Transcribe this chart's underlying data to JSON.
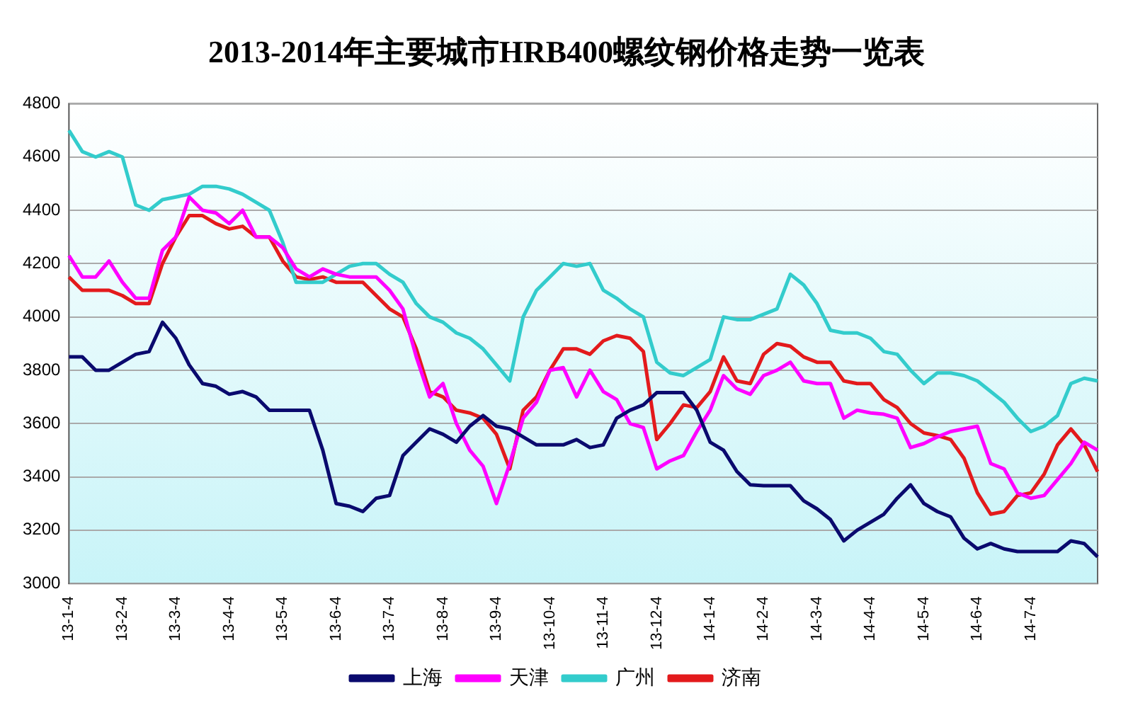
{
  "chart_data": {
    "type": "line",
    "title": "2013-2014年主要城市HRB400螺纹钢价格走势一览表",
    "categories": [
      "13-1-4",
      null,
      null,
      null,
      "13-2-4",
      null,
      null,
      null,
      "13-3-4",
      null,
      null,
      null,
      "13-4-4",
      null,
      null,
      null,
      "13-5-4",
      null,
      null,
      null,
      "13-6-4",
      null,
      null,
      null,
      "13-7-4",
      null,
      null,
      null,
      "13-8-4",
      null,
      null,
      null,
      "13-9-4",
      null,
      null,
      null,
      "13-10-4",
      null,
      null,
      null,
      "13-11-4",
      null,
      null,
      null,
      "13-12-4",
      null,
      null,
      null,
      "14-1-4",
      null,
      null,
      null,
      "14-2-4",
      null,
      null,
      null,
      "14-3-4",
      null,
      null,
      null,
      "14-4-4",
      null,
      null,
      null,
      "14-5-4",
      null,
      null,
      null,
      "14-6-4",
      null,
      null,
      null,
      "14-7-4",
      null,
      null,
      null,
      null,
      null
    ],
    "series": [
      {
        "name": "上海",
        "color": "#0a0a6e",
        "values": [
          3850,
          3850,
          3800,
          3800,
          3830,
          3860,
          3870,
          3980,
          3920,
          3820,
          3750,
          3740,
          3710,
          3720,
          3700,
          3650,
          3650,
          3650,
          3650,
          3500,
          3300,
          3290,
          3270,
          3320,
          3330,
          3480,
          3530,
          3580,
          3560,
          3530,
          3590,
          3630,
          3590,
          3580,
          3550,
          3520,
          3520,
          3520,
          3540,
          3510,
          3520,
          3620,
          3650,
          3670,
          3716,
          3716,
          3716,
          3650,
          3530,
          3500,
          3420,
          3370,
          3367,
          3367,
          3367,
          3310,
          3280,
          3240,
          3160,
          3200,
          3230,
          3260,
          3320,
          3370,
          3300,
          3270,
          3250,
          3170,
          3130,
          3150,
          3130,
          3120,
          3120,
          3120,
          3120,
          3160,
          3150,
          3100
        ]
      },
      {
        "name": "天津",
        "color": "#ff00ff",
        "values": [
          4230,
          4150,
          4150,
          4210,
          4130,
          4070,
          4070,
          4250,
          4300,
          4450,
          4400,
          4390,
          4350,
          4400,
          4300,
          4300,
          4260,
          4180,
          4150,
          4180,
          4160,
          4150,
          4150,
          4150,
          4100,
          4030,
          3850,
          3700,
          3750,
          3600,
          3500,
          3440,
          3300,
          3450,
          3620,
          3680,
          3800,
          3810,
          3700,
          3800,
          3720,
          3690,
          3600,
          3585,
          3430,
          3460,
          3480,
          3570,
          3650,
          3780,
          3730,
          3710,
          3780,
          3800,
          3830,
          3760,
          3750,
          3750,
          3620,
          3650,
          3640,
          3635,
          3620,
          3510,
          3525,
          3550,
          3570,
          3580,
          3590,
          3450,
          3430,
          3340,
          3320,
          3330,
          3390,
          3450,
          3530,
          3500
        ]
      },
      {
        "name": "广州",
        "color": "#33cccc",
        "values": [
          4700,
          4620,
          4600,
          4620,
          4600,
          4420,
          4400,
          4440,
          4450,
          4460,
          4490,
          4490,
          4480,
          4460,
          4430,
          4400,
          4280,
          4130,
          4130,
          4130,
          4160,
          4190,
          4200,
          4200,
          4160,
          4130,
          4050,
          4000,
          3980,
          3940,
          3920,
          3880,
          3820,
          3760,
          4000,
          4100,
          4150,
          4200,
          4190,
          4200,
          4100,
          4070,
          4030,
          4000,
          3830,
          3790,
          3780,
          3810,
          3840,
          4000,
          3990,
          3990,
          4010,
          4030,
          4160,
          4120,
          4050,
          3950,
          3940,
          3940,
          3920,
          3870,
          3860,
          3800,
          3750,
          3790,
          3790,
          3780,
          3760,
          3720,
          3680,
          3620,
          3570,
          3590,
          3630,
          3750,
          3770,
          3760
        ]
      },
      {
        "name": "济南",
        "color": "#e31a1c",
        "values": [
          4150,
          4100,
          4100,
          4100,
          4080,
          4050,
          4050,
          4200,
          4300,
          4380,
          4380,
          4350,
          4330,
          4340,
          4300,
          4300,
          4210,
          4150,
          4140,
          4150,
          4130,
          4130,
          4130,
          4080,
          4030,
          4000,
          3880,
          3720,
          3700,
          3650,
          3640,
          3620,
          3560,
          3430,
          3650,
          3700,
          3800,
          3880,
          3880,
          3860,
          3910,
          3930,
          3920,
          3870,
          3540,
          3600,
          3670,
          3660,
          3720,
          3850,
          3760,
          3750,
          3860,
          3900,
          3890,
          3850,
          3830,
          3830,
          3760,
          3750,
          3750,
          3690,
          3660,
          3600,
          3565,
          3555,
          3540,
          3470,
          3340,
          3260,
          3270,
          3330,
          3340,
          3410,
          3520,
          3580,
          3520,
          3420
        ]
      }
    ],
    "ylim": [
      3000,
      4800
    ],
    "yticks": [
      3000,
      3200,
      3400,
      3600,
      3800,
      4000,
      4200,
      4400,
      4600,
      4800
    ],
    "grid": "y",
    "legend": "bottom",
    "marker": "none",
    "line_style": "solid"
  }
}
